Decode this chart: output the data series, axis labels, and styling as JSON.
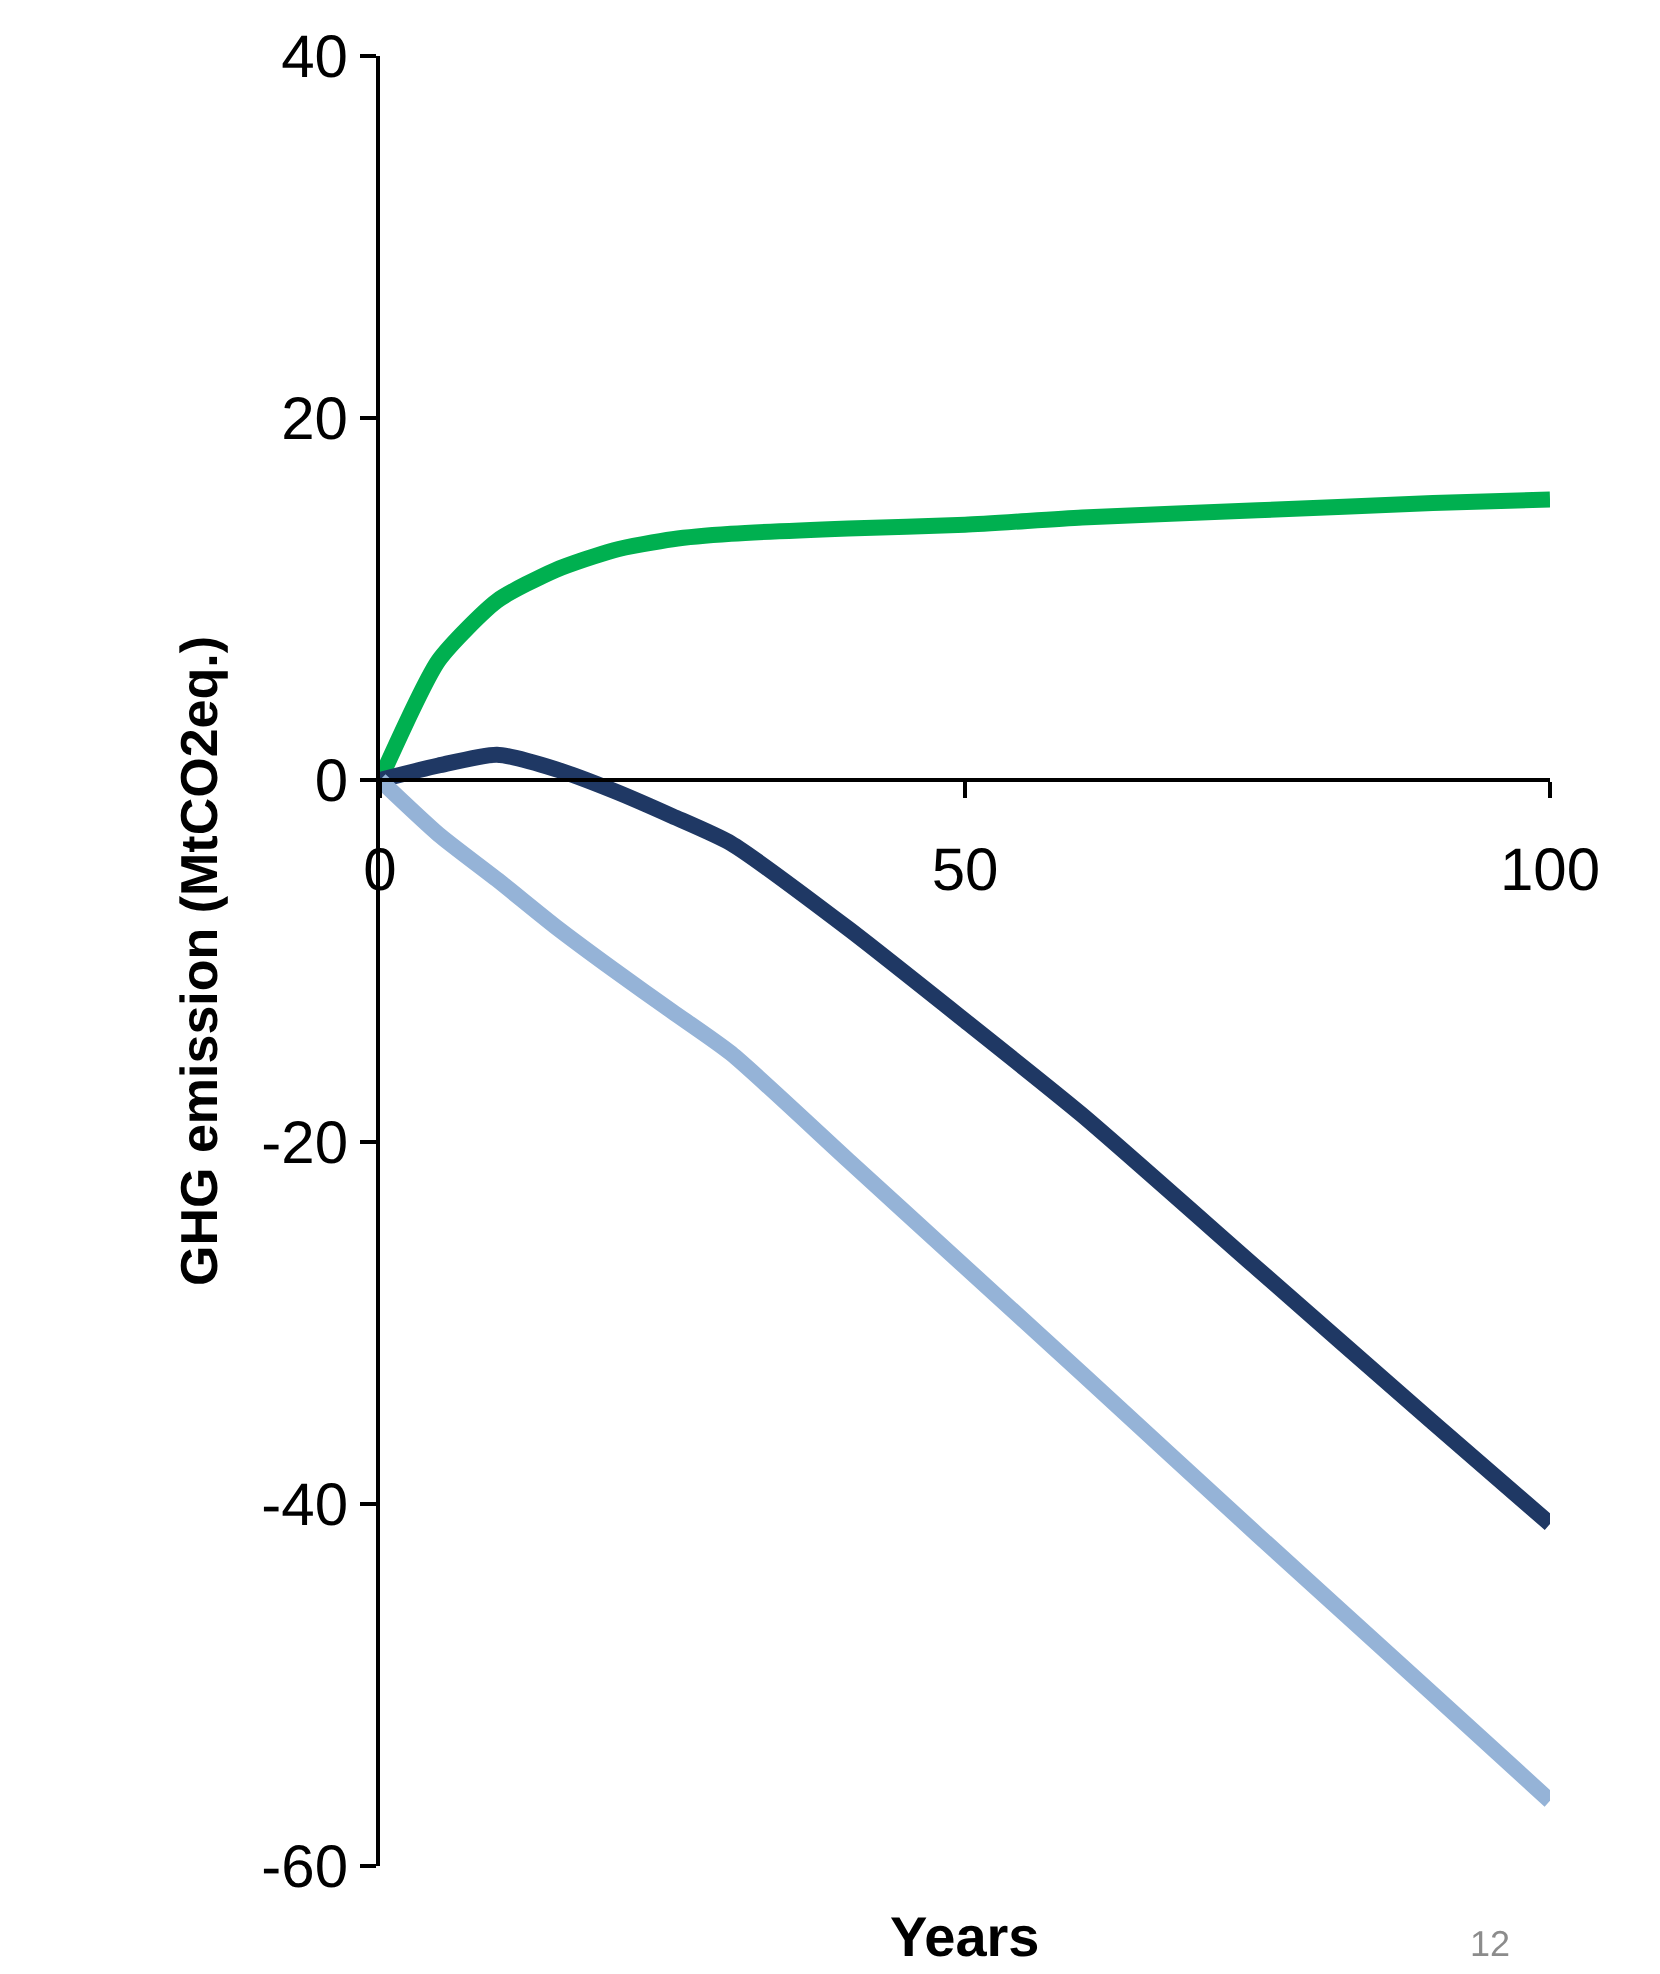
{
  "chart_data": {
    "type": "line",
    "xlabel": "Years",
    "ylabel": "GHG emission (MtCO2eq.)",
    "xlim": [
      0,
      100
    ],
    "ylim": [
      -60,
      40
    ],
    "xticks": [
      0,
      50,
      100
    ],
    "yticks": [
      -60,
      -40,
      -20,
      0,
      20,
      40
    ],
    "x": [
      0,
      5,
      10,
      15,
      20,
      25,
      30,
      40,
      50,
      60,
      75,
      90,
      100
    ],
    "series": [
      {
        "color": "#00b050",
        "values": [
          0,
          6.6,
          9.9,
          11.6,
          12.7,
          13.3,
          13.6,
          13.9,
          14.1,
          14.5,
          14.9,
          15.3,
          15.5
        ]
      },
      {
        "color": "#1f3864",
        "values": [
          0,
          0.8,
          1.4,
          0.6,
          -0.6,
          -2,
          -3.5,
          -8.2,
          -13.3,
          -18.5,
          -27,
          -35.5,
          -41.1
        ]
      },
      {
        "color": "#95b3d7",
        "values": [
          0,
          -3,
          -5.5,
          -8.1,
          -10.5,
          -12.8,
          -15.1,
          -21,
          -26.9,
          -32.8,
          -41.7,
          -50.5,
          -56.4
        ]
      }
    ],
    "marker": "none",
    "line_style": "solid",
    "annotations": [
      "12"
    ]
  }
}
